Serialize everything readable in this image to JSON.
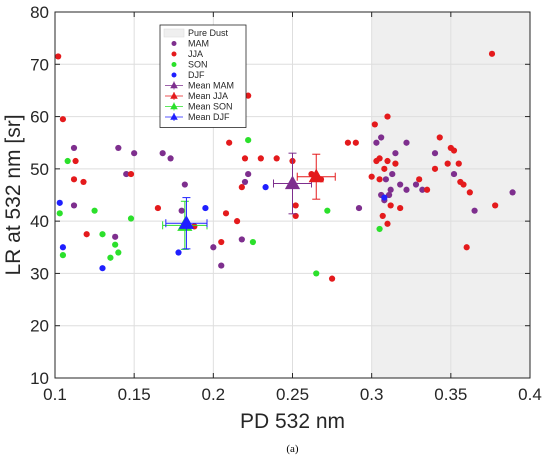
{
  "chart_data": {
    "type": "scatter",
    "xlabel": "PD 532 nm",
    "ylabel": "LR at 532 nm [sr]",
    "xlim": [
      0.1,
      0.4
    ],
    "ylim": [
      10,
      80
    ],
    "xticks": [
      "0.1",
      "0.15",
      "0.2",
      "0.25",
      "0.3",
      "0.35",
      "0.4"
    ],
    "yticks": [
      "10",
      "20",
      "30",
      "40",
      "50",
      "60",
      "70",
      "80"
    ],
    "grid": true,
    "legend_position": "top-left",
    "caption": "(a)",
    "shaded_region": {
      "name": "Pure Dust",
      "x_from": 0.3,
      "x_to": 0.4,
      "color": "#efefef"
    },
    "series": [
      {
        "name": "MAM",
        "kind": "points",
        "color": "#7E2F8E",
        "points": [
          [
            0.112,
            54
          ],
          [
            0.112,
            43
          ],
          [
            0.138,
            37
          ],
          [
            0.14,
            54
          ],
          [
            0.145,
            49
          ],
          [
            0.15,
            53
          ],
          [
            0.168,
            53
          ],
          [
            0.173,
            52
          ],
          [
            0.18,
            42
          ],
          [
            0.182,
            47
          ],
          [
            0.2,
            35
          ],
          [
            0.205,
            31.5
          ],
          [
            0.218,
            36.5
          ],
          [
            0.22,
            47.5
          ],
          [
            0.222,
            49
          ],
          [
            0.292,
            42.5
          ],
          [
            0.303,
            55
          ],
          [
            0.306,
            56
          ],
          [
            0.306,
            45
          ],
          [
            0.308,
            44
          ],
          [
            0.309,
            48
          ],
          [
            0.311,
            45
          ],
          [
            0.312,
            46
          ],
          [
            0.313,
            49
          ],
          [
            0.315,
            53
          ],
          [
            0.318,
            47
          ],
          [
            0.322,
            55
          ],
          [
            0.322,
            46
          ],
          [
            0.328,
            47
          ],
          [
            0.332,
            46
          ],
          [
            0.34,
            53
          ],
          [
            0.352,
            49
          ],
          [
            0.365,
            42
          ],
          [
            0.389,
            45.5
          ]
        ]
      },
      {
        "name": "JJA",
        "kind": "points",
        "color": "#E41A1C",
        "points": [
          [
            0.102,
            71.5
          ],
          [
            0.105,
            59.5
          ],
          [
            0.112,
            48
          ],
          [
            0.113,
            51.5
          ],
          [
            0.118,
            47.5
          ],
          [
            0.12,
            37.5
          ],
          [
            0.148,
            49
          ],
          [
            0.165,
            42.5
          ],
          [
            0.188,
            39
          ],
          [
            0.205,
            36
          ],
          [
            0.208,
            41.5
          ],
          [
            0.21,
            55
          ],
          [
            0.215,
            40
          ],
          [
            0.218,
            46.5
          ],
          [
            0.22,
            52
          ],
          [
            0.222,
            64
          ],
          [
            0.23,
            52
          ],
          [
            0.24,
            52
          ],
          [
            0.25,
            51.5
          ],
          [
            0.252,
            41
          ],
          [
            0.252,
            43
          ],
          [
            0.262,
            49
          ],
          [
            0.268,
            48
          ],
          [
            0.275,
            29
          ],
          [
            0.285,
            55
          ],
          [
            0.29,
            55
          ],
          [
            0.3,
            48.5
          ],
          [
            0.302,
            58.5
          ],
          [
            0.303,
            51.5
          ],
          [
            0.305,
            52
          ],
          [
            0.305,
            48
          ],
          [
            0.307,
            41
          ],
          [
            0.308,
            50
          ],
          [
            0.31,
            51.5
          ],
          [
            0.31,
            39.5
          ],
          [
            0.31,
            60
          ],
          [
            0.312,
            43
          ],
          [
            0.315,
            51
          ],
          [
            0.318,
            42.5
          ],
          [
            0.33,
            48
          ],
          [
            0.335,
            46
          ],
          [
            0.34,
            50
          ],
          [
            0.343,
            56
          ],
          [
            0.348,
            51
          ],
          [
            0.35,
            54
          ],
          [
            0.352,
            53.5
          ],
          [
            0.355,
            51
          ],
          [
            0.356,
            47.5
          ],
          [
            0.358,
            47
          ],
          [
            0.36,
            35
          ],
          [
            0.362,
            45.5
          ],
          [
            0.376,
            72
          ],
          [
            0.378,
            43
          ]
        ]
      },
      {
        "name": "SON",
        "kind": "points",
        "color": "#2BE02B",
        "points": [
          [
            0.103,
            41.5
          ],
          [
            0.105,
            33.5
          ],
          [
            0.108,
            51.5
          ],
          [
            0.125,
            42
          ],
          [
            0.13,
            37.5
          ],
          [
            0.135,
            33
          ],
          [
            0.138,
            35.5
          ],
          [
            0.14,
            34
          ],
          [
            0.148,
            40.5
          ],
          [
            0.222,
            55.5
          ],
          [
            0.225,
            36
          ],
          [
            0.265,
            30
          ],
          [
            0.272,
            42
          ],
          [
            0.305,
            38.5
          ]
        ]
      },
      {
        "name": "DJF",
        "kind": "points",
        "color": "#1F1FFF",
        "points": [
          [
            0.103,
            43.5
          ],
          [
            0.105,
            35
          ],
          [
            0.13,
            31
          ],
          [
            0.178,
            34
          ],
          [
            0.195,
            42.5
          ],
          [
            0.233,
            46.5
          ],
          [
            0.308,
            44.5
          ]
        ]
      },
      {
        "name": "Mean MAM",
        "kind": "mean",
        "color": "#7E2F8E",
        "marker": "triangle",
        "x": 0.25,
        "y": 47.2,
        "x_err": 0.012,
        "y_err": 5.8
      },
      {
        "name": "Mean JJA",
        "kind": "mean",
        "color": "#E41A1C",
        "marker": "triangle",
        "x": 0.265,
        "y": 48.5,
        "x_err": 0.012,
        "y_err": 4.3
      },
      {
        "name": "Mean SON",
        "kind": "mean",
        "color": "#2BE02B",
        "marker": "triangle",
        "x": 0.182,
        "y": 39.2,
        "x_err": 0.014,
        "y_err": 4.6
      },
      {
        "name": "Mean DJF",
        "kind": "mean",
        "color": "#1F1FFF",
        "marker": "triangle",
        "x": 0.183,
        "y": 39.6,
        "x_err": 0.013,
        "y_err": 4.9
      }
    ]
  }
}
